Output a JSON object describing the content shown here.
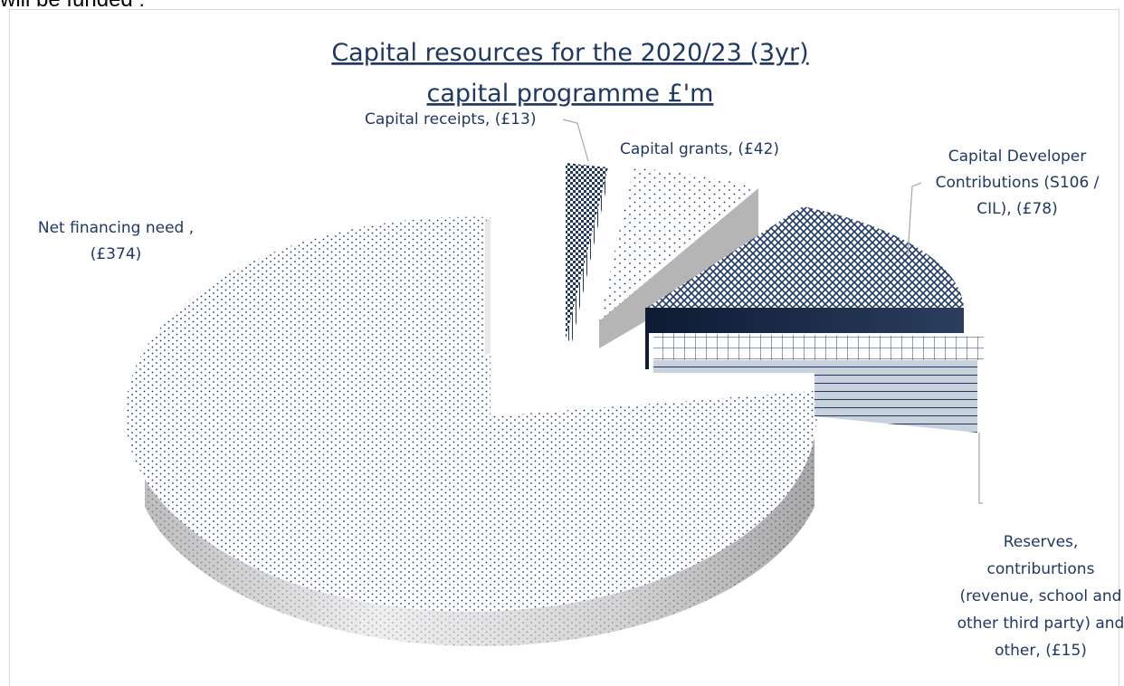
{
  "page": {
    "intro_text": "will be funded :"
  },
  "chart_data": {
    "type": "pie",
    "title_line1": "Capital resources for the 2020/23 (3yr)",
    "title_line2": "capital programme £'m",
    "units": "£'m",
    "slices": [
      {
        "label": "Capital receipts",
        "value": 13,
        "display": "Capital receipts, (£13)"
      },
      {
        "label": "Capital grants",
        "value": 42,
        "display": "Capital grants, (£42)"
      },
      {
        "label": "Capital Developer Contributions (S106 / CIL)",
        "value": 78,
        "display_lines": [
          "Capital Developer",
          "Contributions (S106 /",
          "CIL), (£78)"
        ]
      },
      {
        "label": "Reserves, contriburtions (revenue, school and other third party) and other",
        "value": 15,
        "display_lines": [
          "Reserves,",
          "contriburtions",
          "(revenue, school and",
          "other third party) and",
          "other, (£15)"
        ]
      },
      {
        "label": "Net financing need",
        "value": 374,
        "display_lines": [
          "Net financing need ,",
          "(£374)"
        ]
      }
    ],
    "colors": {
      "navy": "#1f3864",
      "side_gray": "#a6a6a6",
      "label_color": "#1f3864"
    }
  }
}
